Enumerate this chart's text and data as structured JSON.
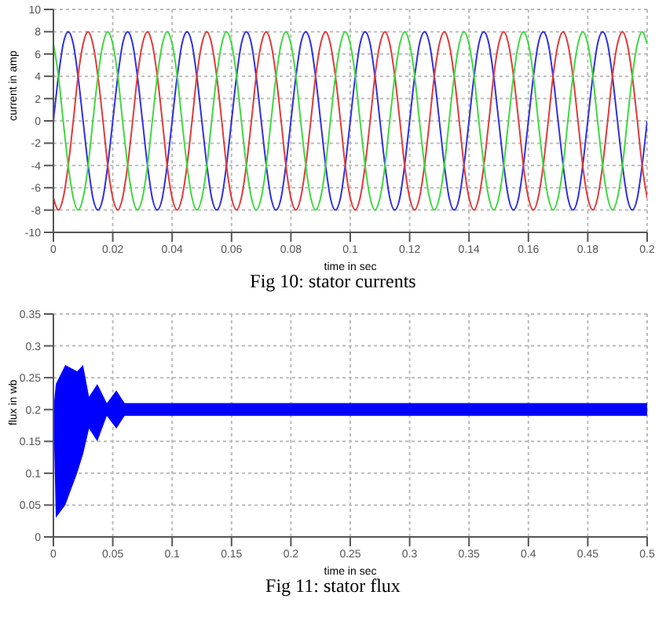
{
  "chart_data": [
    {
      "type": "line",
      "title": "Fig 10: stator currents",
      "xlabel": "time in sec",
      "ylabel": "current in amp",
      "xlim": [
        0,
        0.2
      ],
      "xticks": [
        0,
        0.02,
        0.04,
        0.06,
        0.08,
        0.1,
        0.12,
        0.14,
        0.16,
        0.18,
        0.2
      ],
      "ylim": [
        -10,
        10
      ],
      "yticks": [
        -10,
        -8,
        -6,
        -4,
        -2,
        0,
        2,
        4,
        6,
        8,
        10
      ],
      "grid": true,
      "legend": false,
      "marker": "none",
      "line_style": "solid",
      "x": [
        0,
        0.0017,
        0.0033,
        0.005,
        0.0067,
        0.0083,
        0.01,
        0.0117,
        0.0133,
        0.015,
        0.0167,
        0.0183,
        0.02,
        0.0217,
        0.0233,
        0.025,
        0.0267,
        0.0283,
        0.03,
        0.0317,
        0.0333,
        0.035,
        0.0367,
        0.0383,
        0.04,
        0.0417,
        0.0433,
        0.045,
        0.0467,
        0.0483,
        0.05,
        0.0517,
        0.0533,
        0.055,
        0.0567,
        0.0583,
        0.06,
        0.0617,
        0.0633,
        0.065,
        0.0667,
        0.0683,
        0.07,
        0.0717,
        0.0733,
        0.075,
        0.0767,
        0.0783,
        0.08,
        0.0817,
        0.0833,
        0.085,
        0.0867,
        0.0883,
        0.09,
        0.0917,
        0.0933,
        0.095,
        0.0967,
        0.0983,
        0.1,
        0.1017,
        0.1033,
        0.105,
        0.1067,
        0.1083,
        0.11,
        0.1117,
        0.1133,
        0.115,
        0.1167,
        0.1183,
        0.12,
        0.1217,
        0.1233,
        0.125,
        0.1267,
        0.1283,
        0.13,
        0.1317,
        0.1333,
        0.135,
        0.1367,
        0.1383,
        0.14,
        0.1417,
        0.1433,
        0.145,
        0.1467,
        0.1483,
        0.15,
        0.1517,
        0.1533,
        0.155,
        0.1567,
        0.1583,
        0.16,
        0.1617,
        0.1633,
        0.165,
        0.1667,
        0.1683,
        0.17,
        0.1717,
        0.1733,
        0.175,
        0.1767,
        0.1783,
        0.18,
        0.1817,
        0.1833,
        0.185,
        0.1867,
        0.1883,
        0.19,
        0.1917,
        0.1933,
        0.195,
        0.1967,
        0.1983,
        0.2
      ],
      "series": [
        {
          "color": "#3030e0",
          "values": [
            0,
            4,
            6.9,
            8,
            6.9,
            4,
            0,
            -4,
            -6.9,
            -8,
            -6.9,
            -4,
            0,
            4,
            6.9,
            8,
            6.9,
            4,
            0,
            -4,
            -6.9,
            -8,
            -6.9,
            -4,
            0,
            4,
            6.9,
            8,
            6.9,
            4,
            0,
            -4,
            -6.9,
            -8,
            -6.9,
            -4,
            0,
            4,
            6.9,
            8,
            6.9,
            4,
            0,
            -4,
            -6.9,
            -8,
            -6.9,
            -4,
            0,
            4,
            6.9,
            8,
            6.9,
            4,
            0,
            -4,
            -6.9,
            -8,
            -6.9,
            -4,
            0,
            4,
            6.9,
            8,
            6.9,
            4,
            0,
            -4,
            -6.9,
            -8,
            -6.9,
            -4,
            0,
            4,
            6.9,
            8,
            6.9,
            4,
            0,
            -4,
            -6.9,
            -8,
            -6.9,
            -4,
            0,
            4,
            6.9,
            8,
            6.9,
            4,
            0,
            -4,
            -6.9,
            -8,
            -6.9,
            -4,
            0,
            4,
            6.9,
            8,
            6.9,
            4,
            0,
            -4,
            -6.9,
            -8,
            -6.9,
            -4,
            0,
            4,
            6.9,
            8,
            6.9,
            4,
            0,
            -4,
            -6.9,
            -8,
            -6.9,
            -4,
            0
          ]
        },
        {
          "color": "#e03a3a",
          "values": [
            -6.9,
            -8,
            -6.9,
            -4,
            0,
            4,
            6.9,
            8,
            6.9,
            4,
            0,
            -4,
            -6.9,
            -8,
            -6.9,
            -4,
            0,
            4,
            6.9,
            8,
            6.9,
            4,
            0,
            -4,
            -6.9,
            -8,
            -6.9,
            -4,
            0,
            4,
            6.9,
            8,
            6.9,
            4,
            0,
            -4,
            -6.9,
            -8,
            -6.9,
            -4,
            0,
            4,
            6.9,
            8,
            6.9,
            4,
            0,
            -4,
            -6.9,
            -8,
            -6.9,
            -4,
            0,
            4,
            6.9,
            8,
            6.9,
            4,
            0,
            -4,
            -6.9,
            -8,
            -6.9,
            -4,
            0,
            4,
            6.9,
            8,
            6.9,
            4,
            0,
            -4,
            -6.9,
            -8,
            -6.9,
            -4,
            0,
            4,
            6.9,
            8,
            6.9,
            4,
            0,
            -4,
            -6.9,
            -8,
            -6.9,
            -4,
            0,
            4,
            6.9,
            8,
            6.9,
            4,
            0,
            -4,
            -6.9,
            -8,
            -6.9,
            -4,
            0,
            4,
            6.9,
            8,
            6.9,
            4,
            0,
            -4,
            -6.9,
            -8,
            -6.9,
            -4,
            0,
            4,
            6.9,
            8,
            6.9,
            4,
            0,
            -4,
            -6.9
          ]
        },
        {
          "color": "#40d840",
          "values": [
            6.9,
            4,
            0,
            -4,
            -6.9,
            -8,
            -6.9,
            -4,
            0,
            4,
            6.9,
            8,
            6.9,
            4,
            0,
            -4,
            -6.9,
            -8,
            -6.9,
            -4,
            0,
            4,
            6.9,
            8,
            6.9,
            4,
            0,
            -4,
            -6.9,
            -8,
            -6.9,
            -4,
            0,
            4,
            6.9,
            8,
            6.9,
            4,
            0,
            -4,
            -6.9,
            -8,
            -6.9,
            -4,
            0,
            4,
            6.9,
            8,
            6.9,
            4,
            0,
            -4,
            -6.9,
            -8,
            -6.9,
            -4,
            0,
            4,
            6.9,
            8,
            6.9,
            4,
            0,
            -4,
            -6.9,
            -8,
            -6.9,
            -4,
            0,
            4,
            6.9,
            8,
            6.9,
            4,
            0,
            -4,
            -6.9,
            -8,
            -6.9,
            -4,
            0,
            4,
            6.9,
            8,
            6.9,
            4,
            0,
            -4,
            -6.9,
            -8,
            -6.9,
            -4,
            0,
            4,
            6.9,
            8,
            6.9,
            4,
            0,
            -4,
            -6.9,
            -8,
            -6.9,
            -4,
            0,
            4,
            6.9,
            8,
            6.9,
            4,
            0,
            -4,
            -6.9,
            -8,
            -6.9,
            -4,
            0,
            4,
            6.9,
            8,
            6.9
          ]
        }
      ]
    },
    {
      "type": "line",
      "title": "Fig 11: stator flux",
      "xlabel": "time in sec",
      "ylabel": "flux in wb",
      "xlim": [
        0,
        0.5
      ],
      "xticks": [
        0,
        0.05,
        0.1,
        0.15,
        0.2,
        0.25,
        0.3,
        0.35,
        0.4,
        0.45,
        0.5
      ],
      "ylim": [
        0,
        0.35
      ],
      "yticks": [
        0,
        0.05,
        0.1,
        0.15,
        0.2,
        0.25,
        0.3,
        0.35
      ],
      "grid": true,
      "legend": false,
      "marker": "none",
      "line_style": "solid",
      "x": [
        0,
        0.002,
        0.01,
        0.02,
        0.025,
        0.03,
        0.037,
        0.045,
        0.053,
        0.06,
        0.07,
        0.08,
        0.09,
        0.1,
        0.15,
        0.2,
        0.25,
        0.3,
        0.35,
        0.4,
        0.45,
        0.5
      ],
      "series": [
        {
          "color": "#0000ff",
          "values": [
            0.2,
            0.2,
            0.2,
            0.2,
            0.2,
            0.2,
            0.2,
            0.2,
            0.2,
            0.2,
            0.2,
            0.2,
            0.2,
            0.2,
            0.2,
            0.2,
            0.2,
            0.2,
            0.2,
            0.2,
            0.2,
            0.2
          ],
          "lower": [
            0.2,
            0.03,
            0.05,
            0.1,
            0.13,
            0.17,
            0.15,
            0.19,
            0.17,
            0.19,
            0.19,
            0.19,
            0.19,
            0.19,
            0.19,
            0.19,
            0.19,
            0.19,
            0.19,
            0.19,
            0.19,
            0.19
          ],
          "upper": [
            0.2,
            0.24,
            0.27,
            0.26,
            0.27,
            0.22,
            0.24,
            0.21,
            0.23,
            0.21,
            0.21,
            0.21,
            0.21,
            0.21,
            0.21,
            0.21,
            0.21,
            0.21,
            0.21,
            0.21,
            0.21,
            0.21
          ]
        }
      ]
    }
  ]
}
